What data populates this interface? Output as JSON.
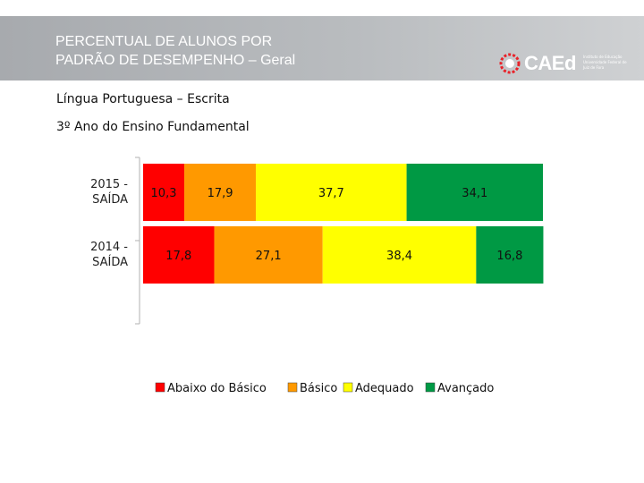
{
  "header": {
    "title_line1": "PERCENTUAL DE ALUNOS POR",
    "title_line2": "PADRÃO DE DESEMPENHO – Geral",
    "logo_text": "CAEd",
    "logo_sub": "Instituto de Educação Universidade Federal de Juiz de Fora"
  },
  "subtitle1": "Língua Portuguesa – Escrita",
  "subtitle2": "3º Ano do Ensino Fundamental",
  "chart_data": {
    "type": "bar",
    "orientation": "horizontal",
    "stacked": true,
    "categories": [
      "2015 - SAÍDA",
      "2014 - SAÍDA"
    ],
    "category_lines": [
      [
        "2015 -",
        "SAÍDA"
      ],
      [
        "2014 -",
        "SAÍDA"
      ]
    ],
    "series": [
      {
        "name": "Abaixo do Básico",
        "color": "#ff0000",
        "values": [
          10.3,
          17.8
        ],
        "labels": [
          "10,3",
          "17,8"
        ]
      },
      {
        "name": "Básico",
        "color": "#ff9900",
        "values": [
          17.9,
          27.1
        ],
        "labels": [
          "17,9",
          "27,1"
        ]
      },
      {
        "name": "Adequado",
        "color": "#ffff00",
        "values": [
          37.7,
          38.4
        ],
        "labels": [
          "37,7",
          "38,4"
        ]
      },
      {
        "name": "Avançado",
        "color": "#009944",
        "values": [
          34.1,
          16.8
        ],
        "labels": [
          "34,1",
          "16,8"
        ]
      }
    ],
    "xlim": [
      0,
      100
    ],
    "legend_position": "bottom"
  }
}
